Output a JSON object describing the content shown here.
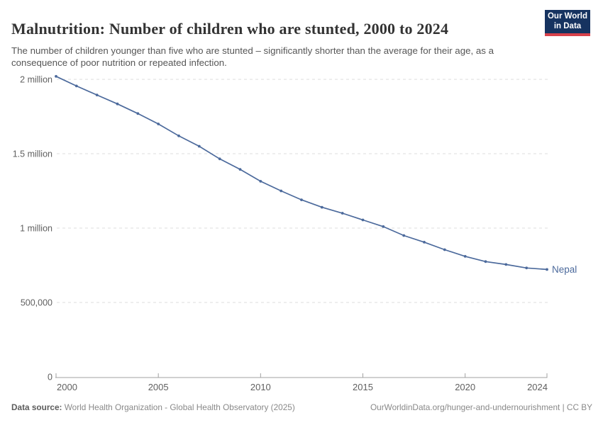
{
  "header": {
    "title": "Malnutrition: Number of children who are stunted, 2000 to 2024",
    "subtitle": "The number of children younger than five who are stunted – significantly shorter than the average for their age, as a consequence of poor nutrition or repeated infection.",
    "logo": {
      "line1": "Our World",
      "line2": "in Data"
    }
  },
  "chart_data": {
    "type": "line",
    "title": "Malnutrition: Number of children who are stunted, 2000 to 2024",
    "x": [
      2000,
      2001,
      2002,
      2003,
      2004,
      2005,
      2006,
      2007,
      2008,
      2009,
      2010,
      2011,
      2012,
      2013,
      2014,
      2015,
      2016,
      2017,
      2018,
      2019,
      2020,
      2021,
      2022,
      2023,
      2024
    ],
    "series": [
      {
        "name": "Nepal",
        "color": "#4C6A9C",
        "values": [
          2020000,
          1955000,
          1895000,
          1835000,
          1770000,
          1700000,
          1620000,
          1550000,
          1465000,
          1395000,
          1315000,
          1250000,
          1190000,
          1140000,
          1100000,
          1055000,
          1010000,
          950000,
          905000,
          855000,
          810000,
          775000,
          755000,
          732000,
          722000
        ]
      }
    ],
    "xticks": [
      2000,
      2005,
      2010,
      2015,
      2020,
      2024
    ],
    "yticks": [
      {
        "value": 0,
        "label": "0"
      },
      {
        "value": 500000,
        "label": "500,000"
      },
      {
        "value": 1000000,
        "label": "1 million"
      },
      {
        "value": 1500000,
        "label": "1.5 million"
      },
      {
        "value": 2000000,
        "label": "2 million"
      }
    ],
    "ylim": [
      0,
      2100000
    ],
    "xlabel": "",
    "ylabel": "",
    "grid": "horizontal-dashed",
    "legend_position": "end-of-line"
  },
  "footer": {
    "datasource_label": "Data source:",
    "datasource_value": " World Health Organization - Global Health Observatory (2025)",
    "link": "OurWorldinData.org/hunger-and-undernourishment",
    "license": " | CC BY"
  },
  "colors": {
    "line": "#4C6A9C",
    "title": "#333333",
    "subtitle": "#565656",
    "axis_text": "#606060",
    "gridline": "#dddddd",
    "axis_line": "#a1a1a1",
    "logo_bg": "#163360",
    "logo_stripe": "#d8414b"
  }
}
